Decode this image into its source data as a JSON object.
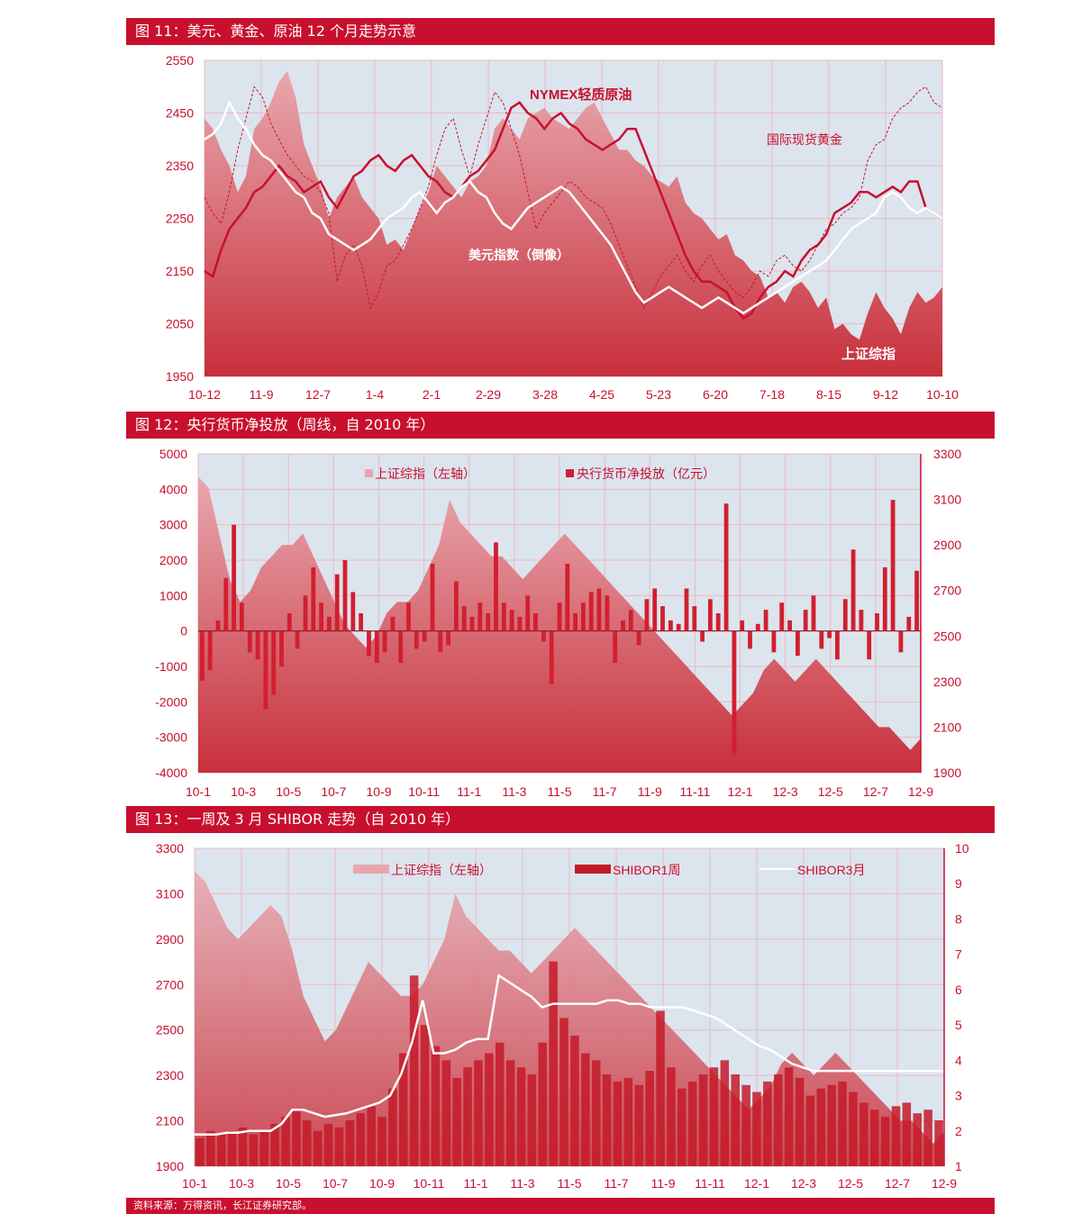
{
  "figures": {
    "fig11": {
      "title": "图 11：美元、黄金、原油 12 个月走势示意"
    },
    "fig12": {
      "title": "图 12：央行货币净投放（周线，自 2010 年）"
    },
    "fig13": {
      "title": "图 13：一周及 3 月 SHIBOR 走势（自 2010 年）"
    }
  },
  "footer": {
    "source": "资料来源：万得资讯，长江证券研究部。"
  },
  "colors": {
    "banner": "#c8102e",
    "plot_bg": "#dce4ee",
    "area_top": "#e8a8ae",
    "area_bottom": "#c8303c",
    "series_red": "#c8102e",
    "series_white": "#ffffff"
  },
  "chart_data": [
    {
      "type": "line",
      "x_ticks": [
        "10-12",
        "11-9",
        "12-7",
        "1-4",
        "2-1",
        "2-29",
        "3-28",
        "4-25",
        "5-23",
        "6-20",
        "7-18",
        "8-15",
        "9-12",
        "10-10"
      ],
      "y_ticks": [
        1950,
        2050,
        2150,
        2250,
        2350,
        2450,
        2550
      ],
      "ylim": [
        1950,
        2550
      ],
      "annotations": [
        "NYMEX轻质原油",
        "国际现货黄金",
        "美元指数（倒像）",
        "上证综指"
      ],
      "grid": true,
      "series": [
        {
          "name": "上证综指",
          "style": "area",
          "values": [
            2440,
            2420,
            2380,
            2350,
            2300,
            2330,
            2420,
            2440,
            2470,
            2510,
            2530,
            2480,
            2390,
            2350,
            2310,
            2250,
            2290,
            2310,
            2330,
            2290,
            2270,
            2250,
            2200,
            2210,
            2190,
            2230,
            2270,
            2300,
            2350,
            2330,
            2310,
            2290,
            2320,
            2330,
            2350,
            2420,
            2440,
            2420,
            2400,
            2440,
            2450,
            2460,
            2440,
            2430,
            2420,
            2440,
            2460,
            2470,
            2440,
            2410,
            2380,
            2380,
            2360,
            2350,
            2330,
            2320,
            2310,
            2330,
            2280,
            2260,
            2250,
            2230,
            2210,
            2220,
            2180,
            2170,
            2150,
            2140,
            2100,
            2110,
            2090,
            2120,
            2130,
            2110,
            2080,
            2100,
            2040,
            2050,
            2030,
            2020,
            2070,
            2110,
            2080,
            2060,
            2030,
            2080,
            2110,
            2090,
            2100,
            2120
          ]
        },
        {
          "name": "NYMEX轻质原油",
          "style": "line",
          "values": [
            2150,
            2140,
            2190,
            2230,
            2250,
            2270,
            2300,
            2310,
            2330,
            2350,
            2330,
            2320,
            2300,
            2310,
            2320,
            2290,
            2270,
            2300,
            2330,
            2340,
            2360,
            2370,
            2350,
            2340,
            2360,
            2370,
            2350,
            2330,
            2320,
            2300,
            2290,
            2310,
            2330,
            2340,
            2360,
            2380,
            2420,
            2460,
            2470,
            2450,
            2440,
            2420,
            2440,
            2450,
            2430,
            2420,
            2400,
            2390,
            2380,
            2390,
            2400,
            2420,
            2420,
            2380,
            2340,
            2300,
            2260,
            2220,
            2180,
            2150,
            2130,
            2130,
            2120,
            2110,
            2080,
            2060,
            2070,
            2100,
            2120,
            2130,
            2150,
            2140,
            2170,
            2190,
            2200,
            2220,
            2260,
            2270,
            2280,
            2300,
            2300,
            2290,
            2300,
            2310,
            2300,
            2320,
            2320,
            2270,
            2260,
            2250
          ]
        },
        {
          "name": "国际现货黄金",
          "style": "dashed",
          "values": [
            2290,
            2260,
            2240,
            2300,
            2380,
            2440,
            2500,
            2480,
            2430,
            2400,
            2370,
            2350,
            2330,
            2320,
            2300,
            2260,
            2130,
            2180,
            2200,
            2160,
            2080,
            2110,
            2160,
            2170,
            2200,
            2230,
            2270,
            2310,
            2370,
            2420,
            2440,
            2380,
            2330,
            2390,
            2440,
            2490,
            2470,
            2420,
            2370,
            2300,
            2230,
            2260,
            2280,
            2300,
            2320,
            2310,
            2290,
            2280,
            2270,
            2240,
            2200,
            2160,
            2120,
            2080,
            2110,
            2140,
            2160,
            2180,
            2150,
            2130,
            2160,
            2180,
            2150,
            2130,
            2110,
            2100,
            2120,
            2150,
            2140,
            2170,
            2180,
            2160,
            2150,
            2170,
            2200,
            2230,
            2240,
            2260,
            2270,
            2290,
            2360,
            2390,
            2400,
            2440,
            2460,
            2470,
            2490,
            2500,
            2470,
            2460
          ]
        },
        {
          "name": "美元指数（倒像）",
          "style": "line",
          "values": [
            2400,
            2410,
            2430,
            2470,
            2440,
            2420,
            2390,
            2370,
            2360,
            2340,
            2320,
            2300,
            2290,
            2260,
            2250,
            2220,
            2210,
            2200,
            2190,
            2200,
            2210,
            2230,
            2250,
            2260,
            2270,
            2290,
            2300,
            2280,
            2260,
            2280,
            2290,
            2310,
            2320,
            2300,
            2290,
            2260,
            2240,
            2230,
            2250,
            2270,
            2280,
            2290,
            2300,
            2310,
            2300,
            2280,
            2260,
            2240,
            2220,
            2200,
            2170,
            2140,
            2110,
            2090,
            2100,
            2110,
            2120,
            2110,
            2100,
            2090,
            2080,
            2090,
            2100,
            2090,
            2080,
            2070,
            2080,
            2090,
            2100,
            2110,
            2120,
            2130,
            2140,
            2150,
            2160,
            2170,
            2190,
            2210,
            2230,
            2240,
            2250,
            2260,
            2290,
            2300,
            2290,
            2270,
            2260,
            2270,
            2260,
            2250
          ]
        }
      ]
    },
    {
      "type": "bar",
      "x_ticks": [
        "10-1",
        "10-3",
        "10-5",
        "10-7",
        "10-9",
        "10-11",
        "11-1",
        "11-3",
        "11-5",
        "11-7",
        "11-9",
        "11-11",
        "12-1",
        "12-3",
        "12-5",
        "12-7",
        "12-9"
      ],
      "y_left_ticks": [
        -4000,
        -3000,
        -2000,
        -1000,
        0,
        1000,
        2000,
        3000,
        4000,
        5000
      ],
      "y_right_ticks": [
        1900,
        2100,
        2300,
        2500,
        2700,
        2900,
        3100,
        3300
      ],
      "ylim_left": [
        -4000,
        5000
      ],
      "ylim_right": [
        1900,
        3300
      ],
      "legend": [
        "上证综指（左轴）",
        "央行货币净投放（亿元）"
      ],
      "legend_position": "top",
      "grid": true,
      "area_series": {
        "name": "上证综指",
        "values": [
          3200,
          3150,
          2950,
          2750,
          2650,
          2700,
          2800,
          2850,
          2900,
          2900,
          2950,
          2850,
          2750,
          2650,
          2550,
          2500,
          2450,
          2500,
          2600,
          2650,
          2650,
          2700,
          2800,
          2900,
          3100,
          3000,
          2950,
          2900,
          2850,
          2850,
          2800,
          2750,
          2800,
          2850,
          2900,
          2950,
          2900,
          2850,
          2800,
          2750,
          2700,
          2650,
          2600,
          2550,
          2500,
          2450,
          2400,
          2350,
          2300,
          2250,
          2200,
          2150,
          2200,
          2250,
          2350,
          2400,
          2350,
          2300,
          2350,
          2400,
          2350,
          2300,
          2250,
          2200,
          2150,
          2100,
          2100,
          2050,
          2000,
          2050
        ]
      },
      "bar_series": {
        "name": "央行货币净投放（亿元）",
        "values": [
          -1400,
          -1100,
          300,
          1500,
          3000,
          800,
          -600,
          -800,
          -2200,
          -1800,
          -1000,
          500,
          -500,
          1000,
          1800,
          800,
          400,
          1600,
          2000,
          1100,
          500,
          -700,
          -900,
          -600,
          400,
          -900,
          800,
          -500,
          -300,
          1900,
          -600,
          -400,
          1400,
          700,
          400,
          800,
          500,
          2500,
          800,
          600,
          400,
          1000,
          500,
          -300,
          -1500,
          800,
          1900,
          500,
          800,
          1100,
          1200,
          1000,
          -900,
          300,
          600,
          -400,
          900,
          1200,
          700,
          300,
          200,
          1200,
          700,
          -300,
          900,
          500,
          3600,
          -3500,
          300,
          -500,
          200,
          600,
          -600,
          800,
          300,
          -700,
          600,
          1000,
          -500,
          -200,
          -800,
          900,
          2300,
          600,
          -800,
          500,
          1800,
          3700,
          -600,
          400,
          1700
        ]
      }
    },
    {
      "type": "line",
      "x_ticks": [
        "10-1",
        "10-3",
        "10-5",
        "10-7",
        "10-9",
        "10-11",
        "11-1",
        "11-3",
        "11-5",
        "11-7",
        "11-9",
        "11-11",
        "12-1",
        "12-3",
        "12-5",
        "12-7",
        "12-9"
      ],
      "y_left_ticks": [
        1900,
        2100,
        2300,
        2500,
        2700,
        2900,
        3100,
        3300
      ],
      "y_right_ticks": [
        1,
        2,
        3,
        4,
        5,
        6,
        7,
        8,
        9,
        10
      ],
      "ylim_left": [
        1900,
        3300
      ],
      "ylim_right": [
        1,
        10
      ],
      "legend": [
        "上证综指（左轴）",
        "SHIBOR1周",
        "SHIBOR3月"
      ],
      "legend_position": "top",
      "grid": true,
      "area_series": {
        "name": "上证综指",
        "values": [
          3200,
          3150,
          3050,
          2950,
          2900,
          2950,
          3000,
          3050,
          3000,
          2850,
          2650,
          2550,
          2450,
          2500,
          2600,
          2700,
          2800,
          2750,
          2700,
          2650,
          2650,
          2700,
          2800,
          2900,
          3100,
          3000,
          2950,
          2900,
          2850,
          2850,
          2800,
          2750,
          2800,
          2850,
          2900,
          2950,
          2900,
          2850,
          2800,
          2750,
          2700,
          2650,
          2600,
          2550,
          2500,
          2450,
          2400,
          2350,
          2300,
          2250,
          2200,
          2150,
          2200,
          2250,
          2350,
          2400,
          2350,
          2300,
          2350,
          2400,
          2350,
          2300,
          2250,
          2200,
          2150,
          2100,
          2100,
          2050,
          2000,
          2050
        ]
      },
      "bar_series": {
        "name": "SHIBOR1周",
        "values": [
          1.8,
          2.0,
          1.9,
          2.0,
          2.1,
          1.9,
          2.0,
          2.2,
          2.4,
          2.6,
          2.3,
          2.0,
          2.2,
          2.1,
          2.3,
          2.5,
          2.7,
          2.4,
          3.2,
          4.2,
          6.4,
          5.0,
          4.4,
          4.0,
          3.5,
          3.8,
          4.0,
          4.2,
          4.5,
          4.0,
          3.8,
          3.6,
          4.5,
          6.8,
          5.2,
          4.7,
          4.2,
          4.0,
          3.6,
          3.4,
          3.5,
          3.3,
          3.7,
          5.4,
          3.8,
          3.2,
          3.4,
          3.6,
          3.8,
          4.0,
          3.6,
          3.3,
          3.1,
          3.4,
          3.6,
          3.8,
          3.5,
          3.0,
          3.2,
          3.3,
          3.4,
          3.1,
          2.8,
          2.6,
          2.4,
          2.7,
          2.8,
          2.5,
          2.6,
          2.3
        ]
      },
      "line_series": {
        "name": "SHIBOR3月",
        "values": [
          1.9,
          1.9,
          1.9,
          1.95,
          1.95,
          2.0,
          2.0,
          2.0,
          2.2,
          2.6,
          2.6,
          2.5,
          2.4,
          2.45,
          2.5,
          2.6,
          2.7,
          2.8,
          3.0,
          3.6,
          4.5,
          5.7,
          4.2,
          4.2,
          4.3,
          4.5,
          4.6,
          4.6,
          6.4,
          6.2,
          6.0,
          5.8,
          5.5,
          5.6,
          5.6,
          5.6,
          5.6,
          5.6,
          5.7,
          5.7,
          5.6,
          5.6,
          5.5,
          5.5,
          5.5,
          5.5,
          5.4,
          5.3,
          5.2,
          5.0,
          4.8,
          4.6,
          4.4,
          4.3,
          4.1,
          3.9,
          3.8,
          3.7,
          3.7,
          3.7,
          3.7,
          3.7,
          3.7,
          3.7,
          3.7,
          3.7,
          3.7,
          3.7,
          3.7,
          3.7
        ]
      }
    }
  ]
}
